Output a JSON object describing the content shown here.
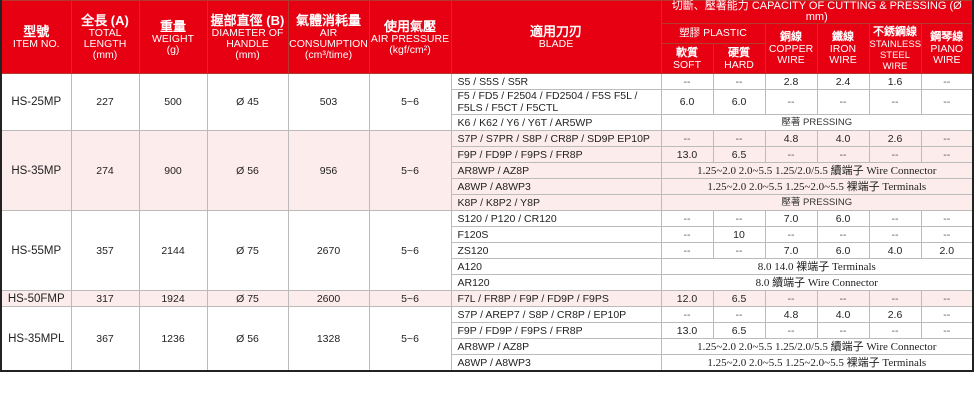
{
  "header": {
    "item": {
      "zh": "型號",
      "en": "ITEM NO."
    },
    "length": {
      "zh": "全長 (A)",
      "en": "TOTAL LENGTH",
      "unit": "(mm)"
    },
    "weight": {
      "zh": "重量",
      "en": "WEIGHT",
      "unit": "(g)"
    },
    "diameter": {
      "zh": "握部直徑 (B)",
      "en": "DIAMETER OF HANDLE",
      "unit": "(mm)"
    },
    "air": {
      "zh": "氣體消耗量",
      "en": "AIR CONSUMPTION",
      "unit": "(cm³/time)"
    },
    "pressure": {
      "zh": "使用氣壓",
      "en": "AIR PRESSURE",
      "unit": "(kgf/cm²)"
    },
    "blade": {
      "zh": "適用刀刃",
      "en": "BLADE"
    },
    "capacity": "切斷、壓著能力 CAPACITY OF CUTTING & PRESSING (Ø mm)",
    "plastic": "塑膠 PLASTIC",
    "soft": {
      "zh": "軟質",
      "en": "SOFT"
    },
    "hard": {
      "zh": "硬質",
      "en": "HARD"
    },
    "copper": {
      "zh": "銅線",
      "en": "COPPER WIRE"
    },
    "iron": {
      "zh": "鐵線",
      "en": "IRON WIRE"
    },
    "stainless": {
      "zh": "不銹鋼線",
      "en": "STAINLESS STEEL WIRE"
    },
    "piano": {
      "zh": "鋼琴線",
      "en": "PIANO WIRE"
    }
  },
  "colors": {
    "header": "#e60012",
    "pink_row": "#fdecec"
  },
  "models": [
    {
      "item": "HS-25MP",
      "length": "227",
      "weight": "500",
      "diameter": "Ø 45",
      "air": "503",
      "pressure": "5~6",
      "pink": false,
      "blades": [
        {
          "blade": "S5 / S5S / S5R",
          "values": [
            "--",
            "--",
            "2.8",
            "2.4",
            "1.6",
            "--"
          ]
        },
        {
          "blade": "F5 / FD5 / F2504 / FD2504 / F5S F5L / F5LS / F5CT / F5CTL",
          "values": [
            "6.0",
            "6.0",
            "--",
            "--",
            "--",
            "--"
          ]
        },
        {
          "blade": "K6 / K62 / Y6 / Y6T / AR5WP",
          "span": "壓著  PRESSING",
          "pressing": true
        }
      ]
    },
    {
      "item": "HS-35MP",
      "length": "274",
      "weight": "900",
      "diameter": "Ø 56",
      "air": "956",
      "pressure": "5~6",
      "pink": true,
      "blades": [
        {
          "blade": "S7P / S7PR / S8P / CR8P / SD9P EP10P",
          "values": [
            "--",
            "--",
            "4.8",
            "4.0",
            "2.6",
            "--"
          ]
        },
        {
          "blade": "F9P / FD9P / F9PS / FR8P",
          "values": [
            "13.0",
            "6.5",
            "--",
            "--",
            "--",
            "--"
          ]
        },
        {
          "blade": "AR8WP / AZ8P",
          "span": "1.25~2.0  2.0~5.5  1.25/2.0/5.5 續端子 Wire Connector"
        },
        {
          "blade": "A8WP / A8WP3",
          "span": "1.25~2.0  2.0~5.5  1.25~2.0~5.5 裸端子 Terminals"
        },
        {
          "blade": "K8P / K8P2 / Y8P",
          "span": "壓著  PRESSING",
          "pressing": true
        }
      ]
    },
    {
      "item": "HS-55MP",
      "length": "357",
      "weight": "2144",
      "diameter": "Ø 75",
      "air": "2670",
      "pressure": "5~6",
      "pink": false,
      "blades": [
        {
          "blade": "S120 / P120 / CR120",
          "values": [
            "--",
            "--",
            "7.0",
            "6.0",
            "--",
            "--"
          ]
        },
        {
          "blade": "F120S",
          "values": [
            "--",
            "10",
            "--",
            "--",
            "--",
            "--"
          ]
        },
        {
          "blade": "ZS120",
          "values": [
            "--",
            "--",
            "7.0",
            "6.0",
            "4.0",
            "2.0"
          ]
        },
        {
          "blade": "A120",
          "span": "8.0  14.0 裸端子 Terminals"
        },
        {
          "blade": "AR120",
          "span": "8.0 續端子 Wire Connector"
        }
      ]
    },
    {
      "item": "HS-50FMP",
      "length": "317",
      "weight": "1924",
      "diameter": "Ø 75",
      "air": "2600",
      "pressure": "5~6",
      "pink": true,
      "blades": [
        {
          "blade": "F7L / FR8P / F9P / FD9P / F9PS",
          "values": [
            "12.0",
            "6.5",
            "--",
            "--",
            "--",
            "--"
          ]
        }
      ]
    },
    {
      "item": "HS-35MPL",
      "length": "367",
      "weight": "1236",
      "diameter": "Ø 56",
      "air": "1328",
      "pressure": "5~6",
      "pink": false,
      "blades": [
        {
          "blade": "S7P / AREP7 / S8P / CR8P / EP10P",
          "values": [
            "--",
            "--",
            "4.8",
            "4.0",
            "2.6",
            "--"
          ]
        },
        {
          "blade": "F9P / FD9P / F9PS / FR8P",
          "values": [
            "13.0",
            "6.5",
            "--",
            "--",
            "--",
            "--"
          ]
        },
        {
          "blade": "AR8WP / AZ8P",
          "span": "1.25~2.0  2.0~5.5  1.25/2.0/5.5 續端子 Wire Connector"
        },
        {
          "blade": "A8WP / A8WP3",
          "span": "1.25~2.0  2.0~5.5  1.25~2.0~5.5 裸端子 Terminals"
        }
      ]
    }
  ]
}
